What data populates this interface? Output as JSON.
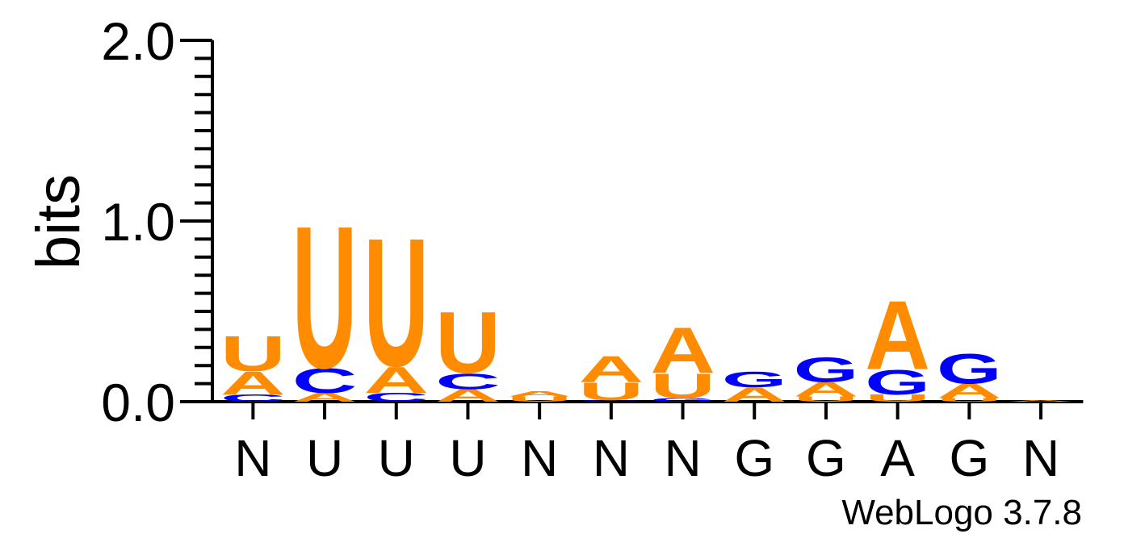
{
  "chart_data": {
    "type": "sequence_logo",
    "ylabel": "bits",
    "ylim": [
      0,
      2.0
    ],
    "y_ticks": [
      "0.0",
      "1.0",
      "2.0"
    ],
    "x_tick_labels": [
      "N",
      "U",
      "U",
      "U",
      "N",
      "N",
      "N",
      "G",
      "G",
      "A",
      "G",
      "N"
    ],
    "credit": "WebLogo 3.7.8",
    "colors": {
      "A": "#ff8c00",
      "U": "#ff8c00",
      "C": "#0000ff",
      "G": "#0000ff"
    },
    "positions": [
      {
        "stack": [
          [
            "C",
            0.04
          ],
          [
            "A",
            0.13
          ],
          [
            "U",
            0.2
          ]
        ]
      },
      {
        "stack": [
          [
            "A",
            0.05
          ],
          [
            "C",
            0.14
          ],
          [
            "U",
            0.81
          ]
        ]
      },
      {
        "stack": [
          [
            "C",
            0.05
          ],
          [
            "A",
            0.15
          ],
          [
            "U",
            0.73
          ]
        ]
      },
      {
        "stack": [
          [
            "A",
            0.07
          ],
          [
            "C",
            0.09
          ],
          [
            "U",
            0.35
          ]
        ]
      },
      {
        "stack": [
          [
            "U",
            0.03
          ],
          [
            "A",
            0.03
          ]
        ]
      },
      {
        "stack": [
          [
            "C",
            0.01
          ],
          [
            "U",
            0.1
          ],
          [
            "A",
            0.15
          ]
        ]
      },
      {
        "stack": [
          [
            "G",
            0.02
          ],
          [
            "U",
            0.14
          ],
          [
            "A",
            0.26
          ]
        ]
      },
      {
        "stack": [
          [
            "A",
            0.08
          ],
          [
            "G",
            0.09
          ]
        ]
      },
      {
        "stack": [
          [
            "U",
            0.03
          ],
          [
            "A",
            0.08
          ],
          [
            "G",
            0.14
          ]
        ]
      },
      {
        "stack": [
          [
            "U",
            0.04
          ],
          [
            "G",
            0.14
          ],
          [
            "A",
            0.39
          ]
        ]
      },
      {
        "stack": [
          [
            "U",
            0.02
          ],
          [
            "A",
            0.08
          ],
          [
            "G",
            0.17
          ]
        ]
      },
      {
        "stack": [
          [
            "A",
            0.01
          ]
        ]
      }
    ]
  }
}
